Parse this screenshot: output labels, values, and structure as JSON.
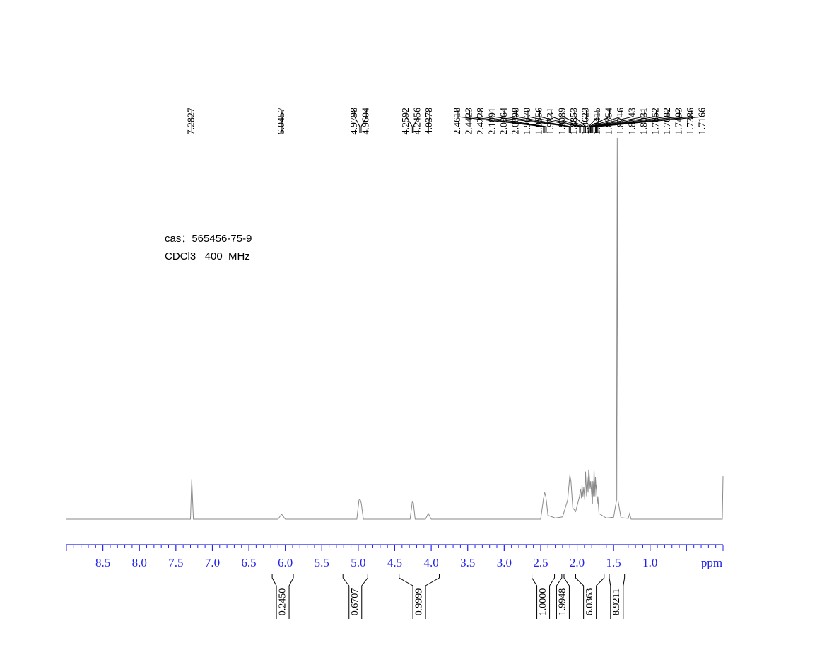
{
  "chart_data": {
    "type": "nmr",
    "annotations": [
      "cas：565456-75-9",
      "CDCl3   400  MHz"
    ],
    "x_label": "ppm",
    "xlim": [
      9,
      0
    ],
    "ylim": [
      0,
      100
    ],
    "xticks": [
      8.5,
      {
        "value": 8,
        "label": "8.0"
      },
      7.5,
      {
        "value": 7,
        "label": "7.0"
      },
      6.5,
      {
        "value": 6,
        "label": "6.0"
      },
      5.5,
      {
        "value": 5,
        "label": "5.0"
      },
      4.5,
      {
        "value": 4,
        "label": "4.0"
      },
      3.5,
      {
        "value": 3,
        "label": "3.0"
      },
      2.5,
      {
        "value": 2,
        "label": "2.0"
      },
      1.5,
      {
        "value": 1,
        "label": "1.0"
      }
    ],
    "color": "#8a8a8a",
    "axis_color": "#2222ee",
    "spectrum": {
      "x": [
        9,
        7.3,
        7.2827,
        7.26,
        6.1,
        6.05,
        6.0,
        5.02,
        4.99,
        4.975,
        4.96,
        4.93,
        4.29,
        4.26,
        4.245,
        4.22,
        4.08,
        4.04,
        4.0,
        2.5,
        2.46,
        2.445,
        2.43,
        2.42,
        2.4,
        2.3,
        2.2,
        2.13,
        2.1,
        2.085,
        2.06,
        2.02,
        1.98,
        1.967,
        1.955,
        1.94,
        1.933,
        1.92,
        1.909,
        1.895,
        1.885,
        1.87,
        1.862,
        1.85,
        1.8415,
        1.835,
        1.822,
        1.814,
        1.803,
        1.79,
        1.785,
        1.775,
        1.768,
        1.755,
        1.749,
        1.74,
        1.7386,
        1.725,
        1.7166,
        1.7,
        1.6,
        1.5,
        1.46,
        1.45,
        1.44,
        1.4,
        1.3,
        1.28,
        1.26,
        0.01,
        0
      ],
      "y": [
        0,
        0,
        10.5,
        0,
        0,
        1.3,
        0,
        0,
        5,
        5.2,
        4.3,
        0,
        0,
        4.5,
        4.3,
        0,
        0,
        1.5,
        0,
        0,
        5.5,
        7,
        6,
        4.5,
        1,
        0.3,
        0.6,
        5,
        11.5,
        10,
        3,
        2,
        5,
        6,
        8,
        5.5,
        9,
        6,
        8.5,
        5,
        12.5,
        6,
        11,
        7,
        13,
        12,
        8,
        10,
        7,
        4,
        10,
        6,
        13,
        6,
        11,
        8,
        9,
        4,
        6,
        1.5,
        0.3,
        0.5,
        5,
        100,
        5,
        0.4,
        0.2,
        1.5,
        0,
        0,
        11.3
      ]
    },
    "peaks": [
      7.2827,
      6.0457,
      4.9798,
      4.9604,
      4.2592,
      4.2456,
      4.0378,
      2.4618,
      2.4423,
      2.4228,
      2.1091,
      2.0964,
      2.0898,
      {
        "value": 1.967,
        "label": "1.9670"
      },
      1.9556,
      1.9331,
      1.9089,
      1.8853,
      1.8623,
      1.8415,
      1.8354,
      1.8216,
      1.8143,
      1.8031,
      1.7852,
      1.7682,
      1.7493,
      1.7386,
      1.7166
    ],
    "integrals": [
      {
        "value": 0.245,
        "label": "0.2450",
        "from": 6.18,
        "to": 5.89
      },
      {
        "value": 0.6707,
        "label": "0.6707",
        "from": 5.21,
        "to": 4.87
      },
      {
        "value": 0.9999,
        "label": "0.9999",
        "from": 4.44,
        "to": 3.89
      },
      {
        "value": 1,
        "label": "1.0000",
        "from": 2.62,
        "to": 2.31
      },
      {
        "value": 1.9948,
        "label": "1.9948",
        "from": 2.21,
        "to": 2.18
      },
      {
        "value": 6.0363,
        "label": "6.0363",
        "from": 2.02,
        "to": 1.63
      },
      {
        "value": 8.9211,
        "label": "8.9211",
        "from": 1.56,
        "to": 1.35
      }
    ]
  }
}
